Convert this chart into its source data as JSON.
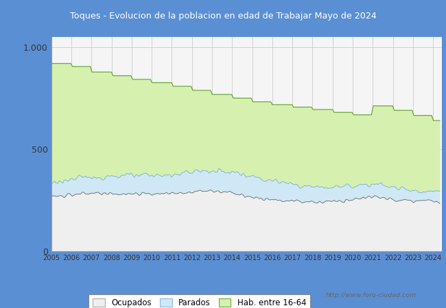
{
  "title": "Toques - Evolucion de la poblacion en edad de Trabajar Mayo de 2024",
  "title_bg_color": "#5b8fd4",
  "title_text_color": "white",
  "ylim": [
    0,
    1050
  ],
  "ytick_labels": [
    "0",
    "500",
    "1.000"
  ],
  "ytick_vals": [
    0,
    500,
    1000
  ],
  "legend_labels": [
    "Ocupados",
    "Parados",
    "Hab. entre 16-64"
  ],
  "url_text": "http://www.foro-ciudad.com",
  "color_hab": "#d6f0b0",
  "color_parados": "#d0e8f5",
  "color_ocupados": "#efefef",
  "line_hab": "#66aa33",
  "line_parados": "#88bbdd",
  "line_ocupados": "#777777",
  "outer_bg": "#5b8fd4",
  "plot_bg": "#f5f5f5",
  "hab_yearly": [
    920,
    905,
    878,
    860,
    842,
    826,
    808,
    788,
    768,
    750,
    732,
    718,
    706,
    694,
    680,
    668,
    712,
    690,
    665,
    640
  ],
  "parados_yearly": [
    335,
    352,
    362,
    368,
    370,
    368,
    375,
    390,
    392,
    388,
    362,
    342,
    326,
    314,
    312,
    322,
    330,
    312,
    298,
    292
  ],
  "ocupados_yearly": [
    268,
    276,
    282,
    285,
    282,
    278,
    282,
    292,
    295,
    288,
    262,
    252,
    246,
    240,
    244,
    254,
    266,
    252,
    244,
    244
  ]
}
